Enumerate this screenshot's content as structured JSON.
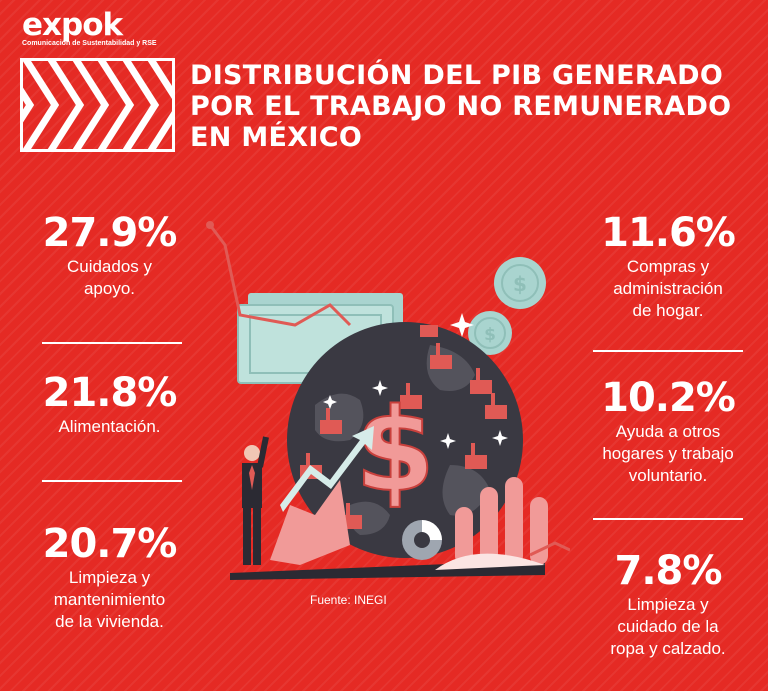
{
  "brand": {
    "name": "expok",
    "tagline": "Comunicación de Sustentabilidad y RSE"
  },
  "title_lines": [
    "DISTRIBUCIÓN DEL PIB GENERADO",
    "POR EL TRABAJO NO REMUNERADO",
    "EN MÉXICO"
  ],
  "chart_data": {
    "type": "table",
    "title": "DISTRIBUCIÓN DEL PIB GENERADO POR EL TRABAJO NO REMUNERADO EN MÉXICO",
    "unit": "%",
    "items": [
      {
        "value": 27.9,
        "value_label": "27.9%",
        "label_lines": [
          "Cuidados y",
          "apoyo."
        ]
      },
      {
        "value": 21.8,
        "value_label": "21.8%",
        "label_lines": [
          "Alimentación."
        ]
      },
      {
        "value": 20.7,
        "value_label": "20.7%",
        "label_lines": [
          "Limpieza y",
          "mantenimiento",
          "de la vivienda."
        ]
      },
      {
        "value": 11.6,
        "value_label": "11.6%",
        "label_lines": [
          "Compras y",
          "administración",
          "de hogar."
        ]
      },
      {
        "value": 10.2,
        "value_label": "10.2%",
        "label_lines": [
          "Ayuda a otros",
          "hogares y trabajo",
          "voluntario."
        ]
      },
      {
        "value": 7.8,
        "value_label": "7.8%",
        "label_lines": [
          "Limpieza y",
          "cuidado de la",
          "ropa y calzado."
        ]
      }
    ]
  },
  "source": "Fuente: INEGI",
  "illustration": {
    "icons": [
      "globe-icon",
      "dollar-icon",
      "coin-icon",
      "banknote-icon",
      "factory-icon",
      "businessman-icon",
      "bar-chart-icon",
      "trend-arrow-icon",
      "donut-chart-icon"
    ]
  },
  "colors": {
    "background": "#e52a24",
    "globe": "#3a3942",
    "accent_pink": "#f19a98",
    "banknote": "#a9d4cf",
    "text": "#ffffff"
  }
}
